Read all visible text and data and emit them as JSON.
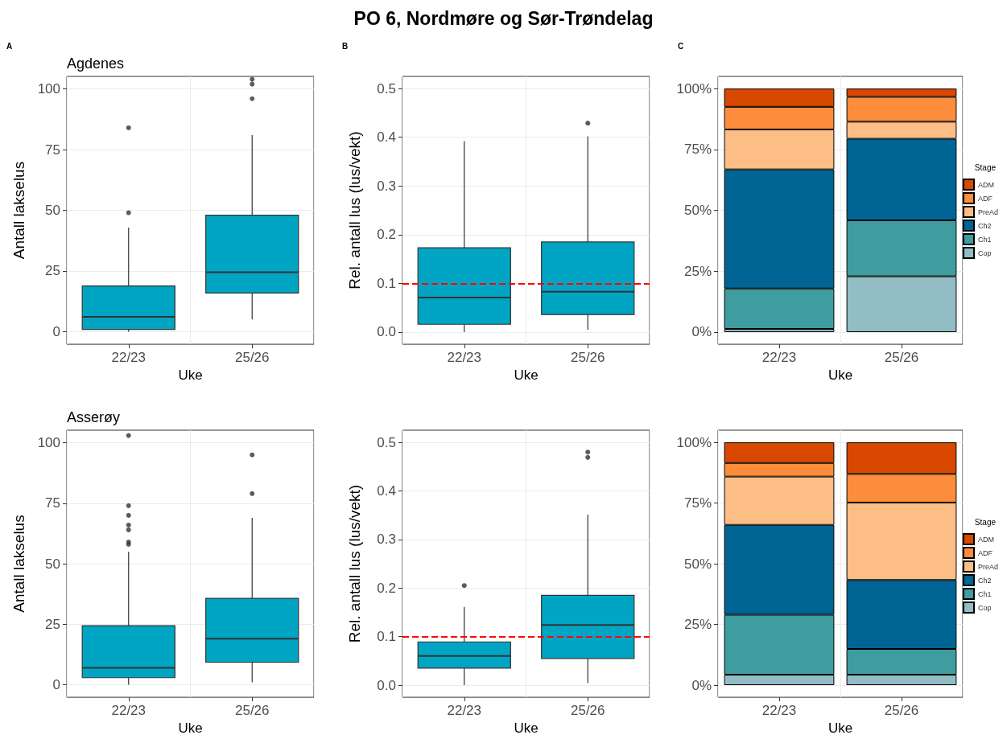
{
  "chart_data": [
    {
      "type": "box",
      "title": "Agdenes",
      "annotations": [
        "A"
      ],
      "categories": [
        "22/23",
        "25/26"
      ],
      "xlabel": "Uke",
      "ylabel": "Antall lakselus",
      "ylim": [
        -5.2,
        105.2
      ],
      "yticks": [
        0,
        25,
        50,
        75,
        100
      ],
      "grid": true,
      "series": [
        {
          "color": "#00a5c4",
          "boxes": [
            {
              "low": 0,
              "q1": 0.9,
              "median": 6.1,
              "q3": 18.8,
              "high": 42.9,
              "outliers": [
                49,
                84
              ]
            },
            {
              "low": 5,
              "q1": 15.9,
              "median": 24.5,
              "q3": 48,
              "high": 81,
              "outliers": [
                96,
                102,
                104
              ]
            }
          ]
        }
      ]
    },
    {
      "type": "box",
      "title": "PO 6, Nordmøre og Sør-Trøndelag",
      "annotations": [
        "B"
      ],
      "categories": [
        "22/23",
        "25/26"
      ],
      "xlabel": "Uke",
      "ylabel": "Rel. antall lus (lus/vekt)",
      "ylim": [
        -0.025,
        0.525
      ],
      "yticks": [
        {
          "value": 0,
          "label": "0.0"
        },
        0.1,
        0.2,
        0.3,
        0.4,
        0.5
      ],
      "grid": true,
      "ref_lines": [
        {
          "axis": "y",
          "value": 0.1,
          "color": "#ff0000",
          "line_style": "dashed"
        }
      ],
      "series": [
        {
          "color": "#00a5c4",
          "boxes": [
            {
              "low": 0,
              "q1": 0.016,
              "median": 0.071,
              "q3": 0.173,
              "high": 0.392
            },
            {
              "low": 0.005,
              "q1": 0.036,
              "median": 0.083,
              "q3": 0.185,
              "high": 0.402,
              "outliers": [
                0.429
              ]
            }
          ]
        }
      ]
    },
    {
      "type": "bar",
      "annotations": [
        "C"
      ],
      "categories": [
        "22/23",
        "25/26"
      ],
      "xlabel": "Uke",
      "stacked": true,
      "ylim": [
        -5,
        105
      ],
      "yticks": [
        {
          "value": 0,
          "label": "0%"
        },
        {
          "value": 25,
          "label": "25%"
        },
        {
          "value": 50,
          "label": "50%"
        },
        {
          "value": 75,
          "label": "75%"
        },
        {
          "value": 100,
          "label": "100%"
        }
      ],
      "grid": true,
      "legend": "right",
      "legend_title": "Stage",
      "series": [
        {
          "name": "Cop",
          "color": "#92bdc5",
          "values": [
            1.3,
            22.9
          ]
        },
        {
          "name": "Ch1",
          "color": "#3f9c9f",
          "values": [
            16.6,
            23.0
          ]
        },
        {
          "name": "Ch2",
          "color": "#006594",
          "values": [
            48.9,
            33.5
          ]
        },
        {
          "name": "PreAd",
          "color": "#fdbe85",
          "values": [
            16.4,
            7.0
          ]
        },
        {
          "name": "ADF",
          "color": "#fd8d3c",
          "values": [
            9.3,
            10.2
          ]
        },
        {
          "name": "ADM",
          "color": "#d94801",
          "values": [
            7.5,
            3.4
          ]
        }
      ]
    },
    {
      "type": "box",
      "title": "Asserøy",
      "categories": [
        "22/23",
        "25/26"
      ],
      "xlabel": "Uke",
      "ylabel": "Antall lakselus",
      "ylim": [
        -5.2,
        105.2
      ],
      "yticks": [
        0,
        25,
        50,
        75,
        100
      ],
      "grid": true,
      "series": [
        {
          "color": "#00a5c4",
          "boxes": [
            {
              "low": 0,
              "q1": 2.9,
              "median": 7,
              "q3": 24.4,
              "high": 54.9,
              "outliers": [
                58,
                59,
                64,
                66,
                70,
                74,
                103
              ]
            },
            {
              "low": 1,
              "q1": 9.3,
              "median": 19,
              "q3": 35.7,
              "high": 69,
              "outliers": [
                79,
                95
              ]
            }
          ]
        }
      ]
    },
    {
      "type": "box",
      "categories": [
        "22/23",
        "25/26"
      ],
      "xlabel": "Uke",
      "ylabel": "Rel. antall lus (lus/vekt)",
      "ylim": [
        -0.025,
        0.525
      ],
      "yticks": [
        {
          "value": 0,
          "label": "0.0"
        },
        0.1,
        0.2,
        0.3,
        0.4,
        0.5
      ],
      "grid": true,
      "ref_lines": [
        {
          "axis": "y",
          "value": 0.1,
          "color": "#ff0000",
          "line_style": "dashed"
        }
      ],
      "series": [
        {
          "color": "#00a5c4",
          "boxes": [
            {
              "low": 0,
              "q1": 0.035,
              "median": 0.06,
              "q3": 0.089,
              "high": 0.161,
              "outliers": [
                0.205
              ]
            },
            {
              "low": 0.004,
              "q1": 0.055,
              "median": 0.124,
              "q3": 0.185,
              "high": 0.351,
              "outliers": [
                0.469,
                0.48
              ]
            }
          ]
        }
      ]
    },
    {
      "type": "bar",
      "categories": [
        "22/23",
        "25/26"
      ],
      "xlabel": "Uke",
      "stacked": true,
      "ylim": [
        -5,
        105
      ],
      "yticks": [
        {
          "value": 0,
          "label": "0%"
        },
        {
          "value": 25,
          "label": "25%"
        },
        {
          "value": 50,
          "label": "50%"
        },
        {
          "value": 75,
          "label": "75%"
        },
        {
          "value": 100,
          "label": "100%"
        }
      ],
      "grid": true,
      "legend": "right",
      "legend_title": "Stage",
      "series": [
        {
          "name": "Cop",
          "color": "#92bdc5",
          "values": [
            4.3,
            4.3
          ]
        },
        {
          "name": "Ch1",
          "color": "#3f9c9f",
          "values": [
            24.7,
            10.6
          ]
        },
        {
          "name": "Ch2",
          "color": "#006594",
          "values": [
            37.0,
            28.4
          ]
        },
        {
          "name": "PreAd",
          "color": "#fdbe85",
          "values": [
            19.9,
            31.9
          ]
        },
        {
          "name": "ADF",
          "color": "#fd8d3c",
          "values": [
            5.6,
            11.8
          ]
        },
        {
          "name": "ADM",
          "color": "#d94801",
          "values": [
            8.5,
            13.0
          ]
        }
      ]
    }
  ]
}
